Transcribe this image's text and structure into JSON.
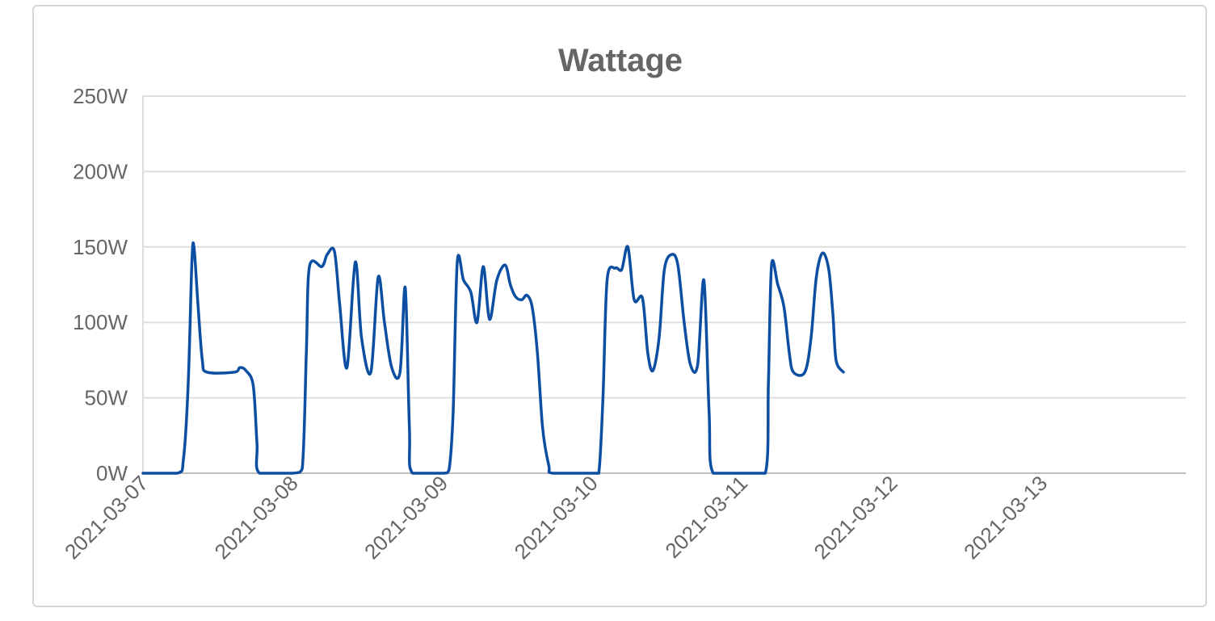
{
  "chart_data": {
    "type": "line",
    "title": "Wattage",
    "xlabel": "",
    "ylabel": "",
    "ylim": [
      0,
      250
    ],
    "xlim": [
      "2021-03-07",
      "2021-03-13T23:59"
    ],
    "y_ticks": [
      "0W",
      "50W",
      "100W",
      "150W",
      "200W",
      "250W"
    ],
    "y_tick_values": [
      0,
      50,
      100,
      150,
      200,
      250
    ],
    "x_ticks": [
      "2021-03-07",
      "2021-03-08",
      "2021-03-09",
      "2021-03-10",
      "2021-03-11",
      "2021-03-12",
      "2021-03-13"
    ],
    "grid": true,
    "legend": "none",
    "series": [
      {
        "color": "#0b4ea2",
        "points": [
          [
            "2021-03-07T00:00",
            0
          ],
          [
            "2021-03-07T05:30",
            0
          ],
          [
            "2021-03-07T06:30",
            10
          ],
          [
            "2021-03-07T07:15",
            60
          ],
          [
            "2021-03-07T07:50",
            140
          ],
          [
            "2021-03-07T08:10",
            150
          ],
          [
            "2021-03-07T08:50",
            110
          ],
          [
            "2021-03-07T09:30",
            75
          ],
          [
            "2021-03-07T10:15",
            67
          ],
          [
            "2021-03-07T14:40",
            67
          ],
          [
            "2021-03-07T15:30",
            70
          ],
          [
            "2021-03-07T16:30",
            68
          ],
          [
            "2021-03-07T17:40",
            58
          ],
          [
            "2021-03-07T18:15",
            20
          ],
          [
            "2021-03-07T18:40",
            0
          ],
          [
            "2021-03-08T00:00",
            0
          ],
          [
            "2021-03-08T01:30",
            3
          ],
          [
            "2021-03-08T02:10",
            80
          ],
          [
            "2021-03-08T02:40",
            137
          ],
          [
            "2021-03-08T04:40",
            137
          ],
          [
            "2021-03-08T05:30",
            145
          ],
          [
            "2021-03-08T06:40",
            147
          ],
          [
            "2021-03-08T07:30",
            112
          ],
          [
            "2021-03-08T08:40",
            70
          ],
          [
            "2021-03-08T10:00",
            140
          ],
          [
            "2021-03-08T11:00",
            90
          ],
          [
            "2021-03-08T12:30",
            67
          ],
          [
            "2021-03-08T13:40",
            130
          ],
          [
            "2021-03-08T14:40",
            100
          ],
          [
            "2021-03-08T15:50",
            70
          ],
          [
            "2021-03-08T17:10",
            67
          ],
          [
            "2021-03-08T18:00",
            123
          ],
          [
            "2021-03-08T18:40",
            30
          ],
          [
            "2021-03-08T19:10",
            0
          ],
          [
            "2021-03-09T00:00",
            0
          ],
          [
            "2021-03-09T01:00",
            2
          ],
          [
            "2021-03-09T01:40",
            40
          ],
          [
            "2021-03-09T02:20",
            140
          ],
          [
            "2021-03-09T03:20",
            128
          ],
          [
            "2021-03-09T04:30",
            120
          ],
          [
            "2021-03-09T05:30",
            100
          ],
          [
            "2021-03-09T06:30",
            137
          ],
          [
            "2021-03-09T07:30",
            102
          ],
          [
            "2021-03-09T08:40",
            128
          ],
          [
            "2021-03-09T10:00",
            138
          ],
          [
            "2021-03-09T10:50",
            125
          ],
          [
            "2021-03-09T11:40",
            117
          ],
          [
            "2021-03-09T12:40",
            115
          ],
          [
            "2021-03-09T13:30",
            118
          ],
          [
            "2021-03-09T14:20",
            110
          ],
          [
            "2021-03-09T15:10",
            80
          ],
          [
            "2021-03-09T16:00",
            30
          ],
          [
            "2021-03-09T17:00",
            5
          ],
          [
            "2021-03-09T17:40",
            0
          ],
          [
            "2021-03-10T00:00",
            0
          ],
          [
            "2021-03-10T01:00",
            0
          ],
          [
            "2021-03-10T01:40",
            50
          ],
          [
            "2021-03-10T02:20",
            128
          ],
          [
            "2021-03-10T03:40",
            136
          ],
          [
            "2021-03-10T04:40",
            135
          ],
          [
            "2021-03-10T05:40",
            150
          ],
          [
            "2021-03-10T06:40",
            115
          ],
          [
            "2021-03-10T08:00",
            116
          ],
          [
            "2021-03-10T08:50",
            80
          ],
          [
            "2021-03-10T09:40",
            68
          ],
          [
            "2021-03-10T10:40",
            90
          ],
          [
            "2021-03-10T11:30",
            135
          ],
          [
            "2021-03-10T12:40",
            145
          ],
          [
            "2021-03-10T13:40",
            138
          ],
          [
            "2021-03-10T14:40",
            100
          ],
          [
            "2021-03-10T15:40",
            72
          ],
          [
            "2021-03-10T16:50",
            72
          ],
          [
            "2021-03-10T17:50",
            128
          ],
          [
            "2021-03-10T18:40",
            40
          ],
          [
            "2021-03-10T19:20",
            0
          ],
          [
            "2021-03-11T00:00",
            0
          ],
          [
            "2021-03-11T03:40",
            0
          ],
          [
            "2021-03-11T04:10",
            60
          ],
          [
            "2021-03-11T04:40",
            138
          ],
          [
            "2021-03-11T05:40",
            125
          ],
          [
            "2021-03-11T06:40",
            110
          ],
          [
            "2021-03-11T07:30",
            80
          ],
          [
            "2021-03-11T08:10",
            67
          ],
          [
            "2021-03-11T10:00",
            67
          ],
          [
            "2021-03-11T11:00",
            90
          ],
          [
            "2021-03-11T11:50",
            130
          ],
          [
            "2021-03-11T12:50",
            146
          ],
          [
            "2021-03-11T13:50",
            135
          ],
          [
            "2021-03-11T14:30",
            105
          ],
          [
            "2021-03-11T15:00",
            75
          ],
          [
            "2021-03-11T16:10",
            67
          ]
        ]
      }
    ]
  }
}
